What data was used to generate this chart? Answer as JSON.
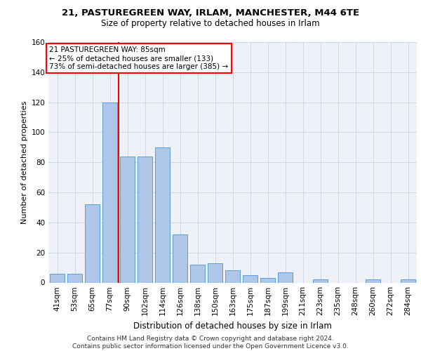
{
  "title_line1": "21, PASTUREGREEN WAY, IRLAM, MANCHESTER, M44 6TE",
  "title_line2": "Size of property relative to detached houses in Irlam",
  "xlabel": "Distribution of detached houses by size in Irlam",
  "ylabel": "Number of detached properties",
  "footer": "Contains HM Land Registry data © Crown copyright and database right 2024.\nContains public sector information licensed under the Open Government Licence v3.0.",
  "bar_labels": [
    "41sqm",
    "53sqm",
    "65sqm",
    "77sqm",
    "90sqm",
    "102sqm",
    "114sqm",
    "126sqm",
    "138sqm",
    "150sqm",
    "163sqm",
    "175sqm",
    "187sqm",
    "199sqm",
    "211sqm",
    "223sqm",
    "235sqm",
    "248sqm",
    "260sqm",
    "272sqm",
    "284sqm"
  ],
  "bar_values": [
    6,
    6,
    52,
    120,
    84,
    84,
    90,
    32,
    12,
    13,
    8,
    5,
    3,
    7,
    0,
    2,
    0,
    0,
    2,
    0,
    2
  ],
  "bar_color": "#aec6e8",
  "bar_edge_color": "#5a9fd4",
  "grid_color": "#d0d8e8",
  "background_color": "#eef2f8",
  "red_line_x": 3.5,
  "annotation_text": "21 PASTUREGREEN WAY: 85sqm\n← 25% of detached houses are smaller (133)\n73% of semi-detached houses are larger (385) →",
  "annotation_box_color": "white",
  "annotation_border_color": "red",
  "ylim": [
    0,
    160
  ],
  "yticks": [
    0,
    20,
    40,
    60,
    80,
    100,
    120,
    140,
    160
  ],
  "red_line_color": "red",
  "title1_fontsize": 9.5,
  "title2_fontsize": 8.5,
  "ylabel_fontsize": 8,
  "xlabel_fontsize": 8.5,
  "tick_fontsize": 7.5,
  "footer_fontsize": 6.5,
  "annot_fontsize": 7.5
}
